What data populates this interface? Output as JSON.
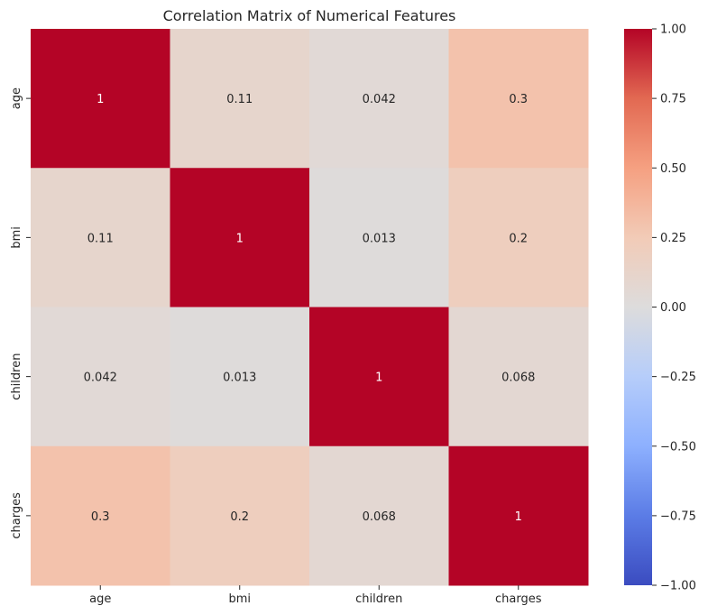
{
  "chart_data": {
    "type": "heatmap",
    "title": "Correlation Matrix of Numerical Features",
    "xlabel": "",
    "ylabel": "",
    "x_categories": [
      "age",
      "bmi",
      "children",
      "charges"
    ],
    "y_categories": [
      "age",
      "bmi",
      "children",
      "charges"
    ],
    "values": [
      [
        1,
        0.11,
        0.042,
        0.3
      ],
      [
        0.11,
        1,
        0.013,
        0.2
      ],
      [
        0.042,
        0.013,
        1,
        0.068
      ],
      [
        0.3,
        0.2,
        0.068,
        1
      ]
    ],
    "annotations": [
      [
        "1",
        "0.11",
        "0.042",
        "0.3"
      ],
      [
        "0.11",
        "1",
        "0.013",
        "0.2"
      ],
      [
        "0.042",
        "0.013",
        "1",
        "0.068"
      ],
      [
        "0.3",
        "0.2",
        "0.068",
        "1"
      ]
    ],
    "colormap": "coolwarm",
    "vmin": -1.0,
    "vmax": 1.0,
    "colorbar_ticks": [
      -1.0,
      -0.75,
      -0.5,
      -0.25,
      0.0,
      0.25,
      0.5,
      0.75,
      1.0
    ],
    "colorbar_tick_labels": [
      "−1.00",
      "−0.75",
      "−0.50",
      "−0.25",
      "0.00",
      "0.25",
      "0.50",
      "0.75",
      "1.00"
    ],
    "colorbar_placement": "right",
    "grid": false
  }
}
